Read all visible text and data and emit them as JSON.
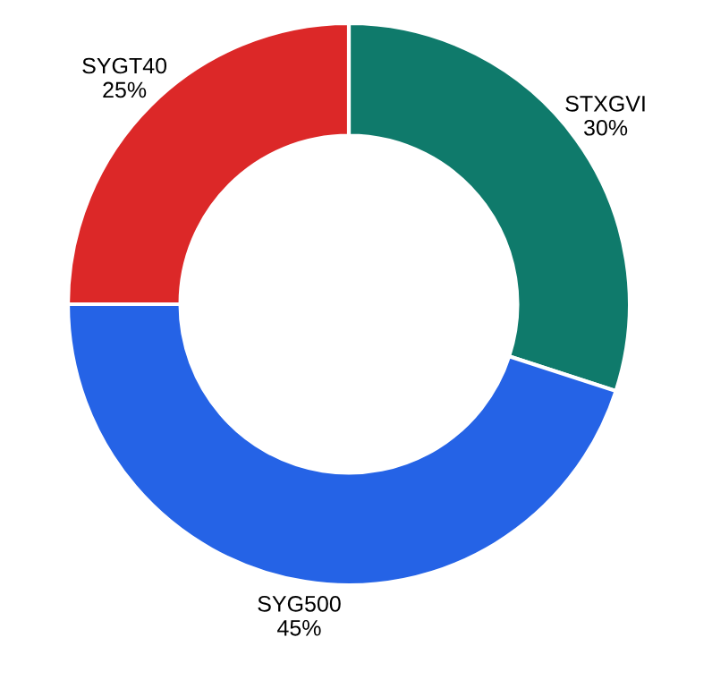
{
  "chart_data": {
    "type": "donut",
    "categories": [
      "STXGVI",
      "SYG500",
      "SYGT40"
    ],
    "values": [
      30,
      45,
      25
    ],
    "value_labels": [
      "30%",
      "45%",
      "25%"
    ],
    "colors": [
      "#0f7a6b",
      "#2563e6",
      "#dc2828"
    ],
    "legend": false
  }
}
